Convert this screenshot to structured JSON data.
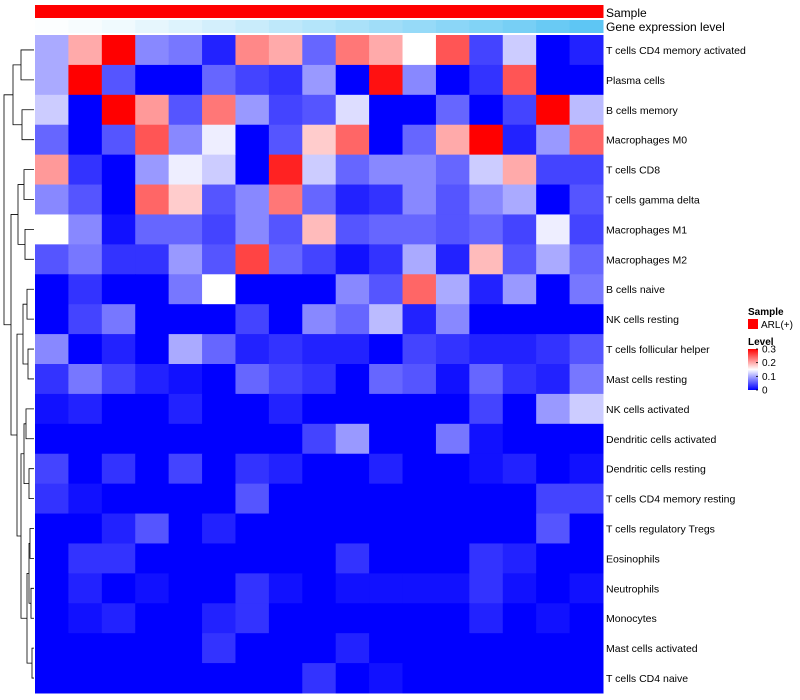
{
  "chart_data": {
    "type": "heatmap",
    "title": "",
    "row_labels": [
      "T cells CD4 memory activated",
      "Plasma cells",
      "B cells memory",
      "Macrophages M0",
      "T cells CD8",
      "T cells gamma delta",
      "Macrophages M1",
      "Macrophages M2",
      "B cells naive",
      "NK cells resting",
      "T cells follicular helper",
      "Mast cells resting",
      "NK cells activated",
      "Dendritic cells activated",
      "Dendritic cells resting",
      "T cells CD4 memory resting",
      "T cells regulatory  Tregs",
      "Eosinophils",
      "Neutrophils",
      "Monocytes",
      "Mast cells activated",
      "T cells CD4 naive"
    ],
    "n_columns": 17,
    "values": [
      [
        0.1,
        0.2,
        0.3,
        0.08,
        0.07,
        0.02,
        0.22,
        0.2,
        0.06,
        0.23,
        0.2,
        0.15,
        0.25,
        0.04,
        0.12,
        0.0,
        0.02
      ],
      [
        0.1,
        0.3,
        0.05,
        0.0,
        0.0,
        0.06,
        0.04,
        0.03,
        0.09,
        0.0,
        0.29,
        0.08,
        0.0,
        0.03,
        0.25,
        0.0,
        0.0
      ],
      [
        0.12,
        0.0,
        0.3,
        0.21,
        0.05,
        0.23,
        0.09,
        0.04,
        0.05,
        0.13,
        0.0,
        0.0,
        0.06,
        0.0,
        0.04,
        0.3,
        0.11
      ],
      [
        0.06,
        0.0,
        0.05,
        0.25,
        0.08,
        0.14,
        0.0,
        0.05,
        0.18,
        0.24,
        0.0,
        0.06,
        0.2,
        0.3,
        0.02,
        0.09,
        0.24
      ],
      [
        0.21,
        0.03,
        0.0,
        0.09,
        0.14,
        0.12,
        0.0,
        0.28,
        0.12,
        0.06,
        0.08,
        0.08,
        0.06,
        0.12,
        0.2,
        0.04,
        0.04
      ],
      [
        0.08,
        0.05,
        0.0,
        0.24,
        0.18,
        0.05,
        0.08,
        0.23,
        0.06,
        0.02,
        0.03,
        0.08,
        0.05,
        0.08,
        0.1,
        0.0,
        0.05
      ],
      [
        0.15,
        0.08,
        0.01,
        0.06,
        0.06,
        0.04,
        0.08,
        0.05,
        0.19,
        0.05,
        0.06,
        0.06,
        0.05,
        0.06,
        0.04,
        0.14,
        0.04
      ],
      [
        0.05,
        0.07,
        0.03,
        0.03,
        0.09,
        0.05,
        0.26,
        0.06,
        0.04,
        0.01,
        0.03,
        0.1,
        0.02,
        0.19,
        0.05,
        0.1,
        0.06
      ],
      [
        0.0,
        0.03,
        0.0,
        0.0,
        0.07,
        0.15,
        0.0,
        0.0,
        0.0,
        0.08,
        0.05,
        0.24,
        0.1,
        0.02,
        0.09,
        0.0,
        0.07
      ],
      [
        0.0,
        0.04,
        0.07,
        0.0,
        0.0,
        0.0,
        0.04,
        0.0,
        0.08,
        0.06,
        0.11,
        0.02,
        0.08,
        0.0,
        0.0,
        0.0,
        0.0
      ],
      [
        0.08,
        0.0,
        0.02,
        0.0,
        0.1,
        0.06,
        0.02,
        0.03,
        0.02,
        0.02,
        0.0,
        0.04,
        0.03,
        0.02,
        0.02,
        0.03,
        0.05
      ],
      [
        0.03,
        0.07,
        0.04,
        0.02,
        0.01,
        0.0,
        0.06,
        0.04,
        0.03,
        0.0,
        0.06,
        0.05,
        0.01,
        0.06,
        0.03,
        0.02,
        0.07
      ],
      [
        0.01,
        0.02,
        0.0,
        0.0,
        0.02,
        0.0,
        0.0,
        0.02,
        0.0,
        0.0,
        0.0,
        0.0,
        0.0,
        0.04,
        0.0,
        0.09,
        0.12
      ],
      [
        0.0,
        0.0,
        0.0,
        0.0,
        0.0,
        0.0,
        0.0,
        0.0,
        0.04,
        0.09,
        0.0,
        0.0,
        0.07,
        0.01,
        0.0,
        0.0,
        0.0
      ],
      [
        0.04,
        0.0,
        0.03,
        0.0,
        0.04,
        0.0,
        0.03,
        0.02,
        0.0,
        0.0,
        0.02,
        0.0,
        0.0,
        0.01,
        0.02,
        0.0,
        0.01
      ],
      [
        0.03,
        0.01,
        0.0,
        0.0,
        0.0,
        0.0,
        0.05,
        0.0,
        0.0,
        0.0,
        0.0,
        0.0,
        0.0,
        0.0,
        0.0,
        0.04,
        0.04
      ],
      [
        0.0,
        0.0,
        0.02,
        0.05,
        0.0,
        0.02,
        0.0,
        0.0,
        0.0,
        0.0,
        0.0,
        0.0,
        0.0,
        0.0,
        0.0,
        0.05,
        0.0
      ],
      [
        0.0,
        0.03,
        0.03,
        0.0,
        0.0,
        0.0,
        0.0,
        0.0,
        0.0,
        0.03,
        0.0,
        0.0,
        0.0,
        0.03,
        0.02,
        0.0,
        0.0
      ],
      [
        0.0,
        0.02,
        0.0,
        0.01,
        0.0,
        0.0,
        0.03,
        0.01,
        0.0,
        0.01,
        0.01,
        0.01,
        0.01,
        0.03,
        0.01,
        0.0,
        0.01
      ],
      [
        0.0,
        0.01,
        0.02,
        0.0,
        0.0,
        0.02,
        0.03,
        0.0,
        0.0,
        0.0,
        0.0,
        0.0,
        0.0,
        0.02,
        0.0,
        0.01,
        0.0
      ],
      [
        0.0,
        0.0,
        0.0,
        0.0,
        0.0,
        0.03,
        0.0,
        0.0,
        0.0,
        0.02,
        0.0,
        0.0,
        0.0,
        0.0,
        0.0,
        0.0,
        0.0
      ],
      [
        0.0,
        0.0,
        0.0,
        0.0,
        0.0,
        0.0,
        0.0,
        0.0,
        0.03,
        0.0,
        0.01,
        0.0,
        0.0,
        0.0,
        0.0,
        0.0,
        0.0
      ]
    ],
    "color_scale": {
      "min": 0,
      "mid": 0.15,
      "max": 0.3,
      "low_color": "#0000ff",
      "mid_color": "#ffffff",
      "high_color": "#ff0000"
    },
    "column_annotations": [
      {
        "name": "Sample",
        "color": "#ff0000"
      },
      {
        "name": "Gene expression level",
        "values": [
          0.02,
          0.05,
          0.09,
          0.15,
          0.2,
          0.26,
          0.32,
          0.38,
          0.44,
          0.5,
          0.56,
          0.62,
          0.68,
          0.74,
          0.8,
          0.88,
          0.95
        ]
      }
    ],
    "gene_expression_colors": {
      "low": "#ffffff",
      "high": "#55c3f3"
    },
    "legend": {
      "sample_title": "Sample",
      "sample_entry": "ARL(+)",
      "sample_color": "#ff0000",
      "level_title": "Level",
      "level_ticks": [
        "0.3",
        "0.2",
        "0.1",
        "0"
      ],
      "level_tick_values": [
        0.3,
        0.2,
        0.1,
        0
      ]
    },
    "dendrogram": "row"
  }
}
